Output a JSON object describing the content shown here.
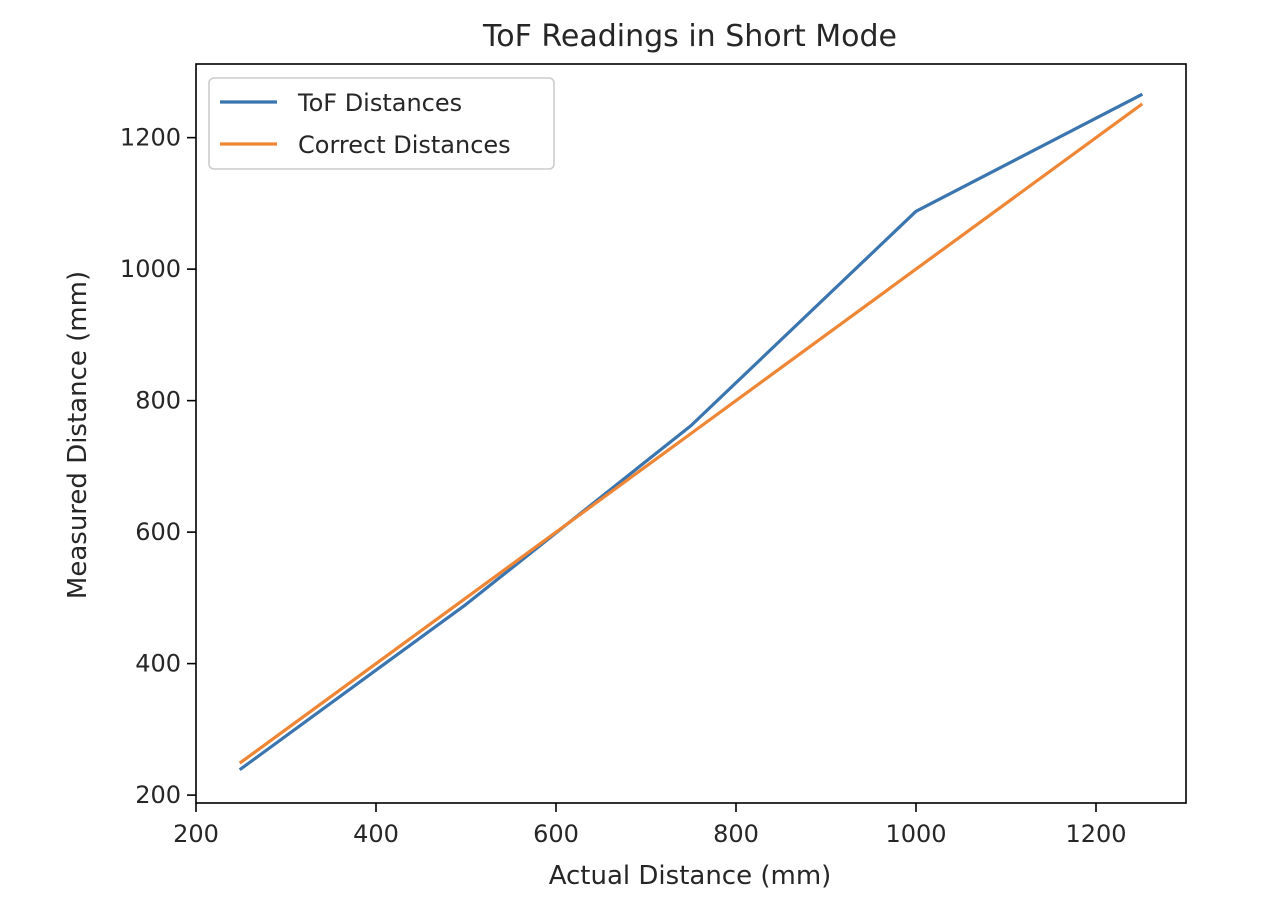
{
  "chart_data": {
    "type": "line",
    "title": "ToF Readings in Short Mode",
    "xlabel": "Actual Distance (mm)",
    "ylabel": "Measured Distance (mm)",
    "xlim": [
      200,
      1300
    ],
    "ylim": [
      188,
      1312
    ],
    "xticks": [
      200,
      400,
      600,
      800,
      1000,
      1200
    ],
    "yticks": [
      200,
      400,
      600,
      800,
      1000,
      1200
    ],
    "grid": false,
    "legend_position": "upper-left",
    "x": [
      250,
      500,
      750,
      1000,
      1250
    ],
    "series": [
      {
        "name": "ToF Distances",
        "color": "#3b75af",
        "values": [
          240,
          490,
          762,
          1088,
          1265
        ]
      },
      {
        "name": "Correct Distances",
        "color": "#ef8636",
        "values": [
          250,
          500,
          750,
          1000,
          1250
        ]
      }
    ]
  }
}
